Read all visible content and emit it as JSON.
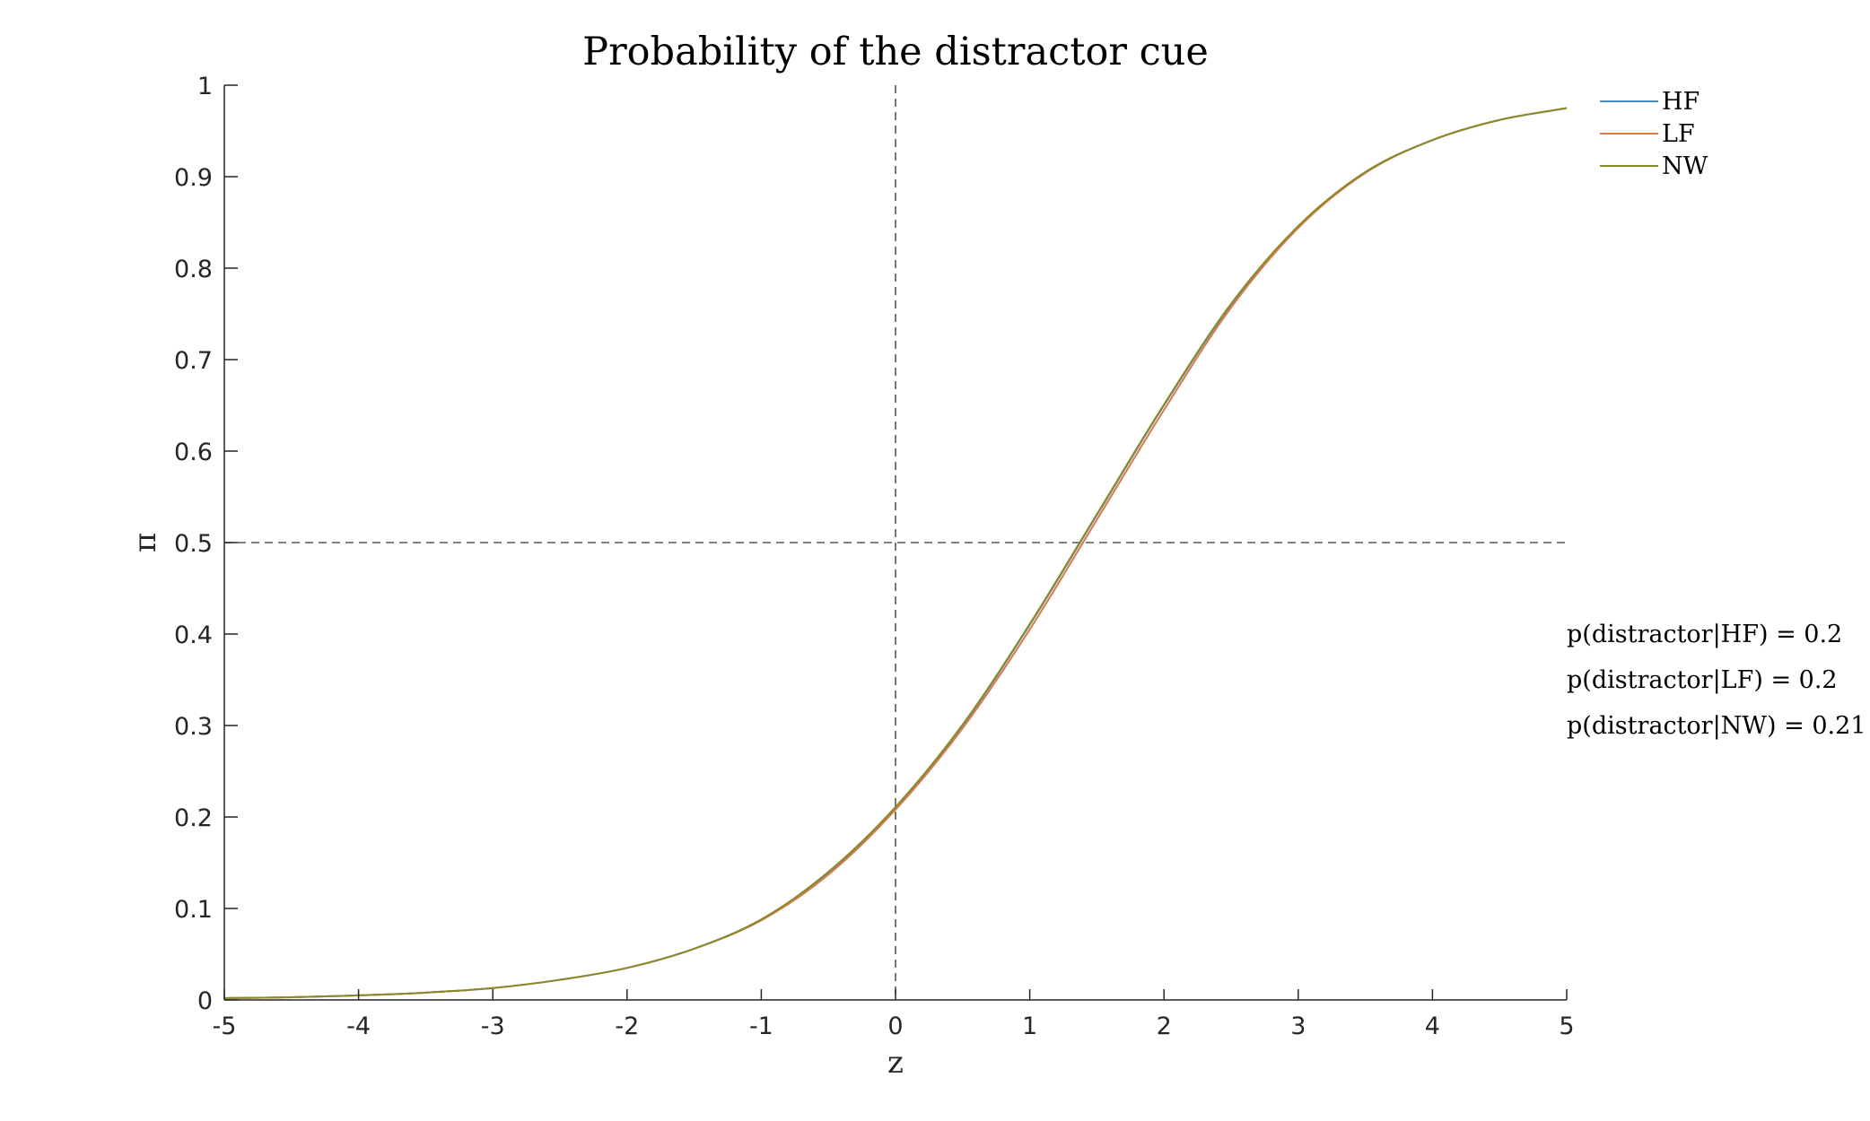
{
  "chart_data": {
    "type": "line",
    "title": "Probability of the distractor cue",
    "xlabel": "z",
    "ylabel": "π",
    "xlim": [
      -5,
      5
    ],
    "ylim": [
      0,
      1
    ],
    "xticks": [
      -5,
      -4,
      -3,
      -2,
      -1,
      0,
      1,
      2,
      3,
      4,
      5
    ],
    "yticks": [
      0,
      0.1,
      0.2,
      0.3,
      0.4,
      0.5,
      0.6,
      0.7,
      0.8,
      0.9,
      1
    ],
    "x": [
      -5,
      -4.5,
      -4,
      -3.5,
      -3,
      -2.5,
      -2,
      -1.5,
      -1,
      -0.5,
      0,
      0.5,
      1,
      1.5,
      2,
      2.5,
      3,
      3.5,
      4,
      4.5,
      5
    ],
    "series": [
      {
        "name": "HF",
        "color": "#4a90c2",
        "values": [
          0.002,
          0.003,
          0.005,
          0.008,
          0.013,
          0.022,
          0.035,
          0.056,
          0.088,
          0.139,
          0.21,
          0.3,
          0.41,
          0.53,
          0.65,
          0.76,
          0.845,
          0.905,
          0.94,
          0.962,
          0.975
        ]
      },
      {
        "name": "LF",
        "color": "#d8794a",
        "values": [
          0.002,
          0.003,
          0.005,
          0.008,
          0.013,
          0.022,
          0.035,
          0.056,
          0.087,
          0.137,
          0.208,
          0.297,
          0.405,
          0.525,
          0.645,
          0.757,
          0.844,
          0.904,
          0.94,
          0.962,
          0.975
        ]
      },
      {
        "name": "NW",
        "color": "#8a8a2a",
        "values": [
          0.002,
          0.003,
          0.005,
          0.008,
          0.013,
          0.022,
          0.035,
          0.056,
          0.088,
          0.14,
          0.211,
          0.301,
          0.411,
          0.531,
          0.651,
          0.761,
          0.846,
          0.905,
          0.94,
          0.962,
          0.975
        ]
      }
    ],
    "reference_lines": {
      "x": 0,
      "y": 0.5
    },
    "legend_position": "top-right",
    "grid": false,
    "annotations": [
      "p(distractor|HF) = 0.2",
      "p(distractor|LF) = 0.2",
      "p(distractor|NW) = 0.21"
    ]
  }
}
